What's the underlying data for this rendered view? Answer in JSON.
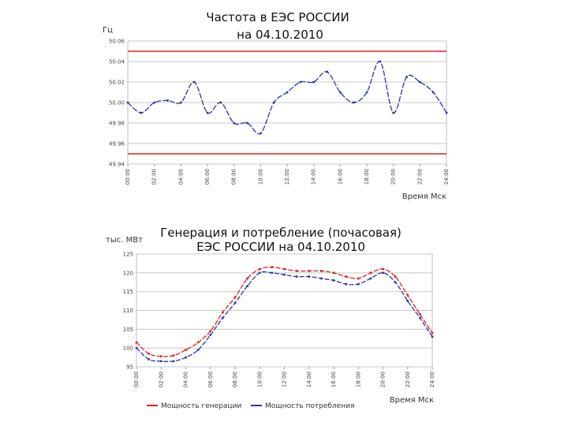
{
  "chart_data": [
    {
      "type": "line",
      "title_line1": "Частота в ЕЭС РОССИИ",
      "title_line2": "на 04.10.2010",
      "ylabel": "Гц",
      "xlabel": "Время Мск",
      "ylim": [
        49.94,
        50.06
      ],
      "y_ticks": [
        "50.06",
        "50.04",
        "50.02",
        "50.00",
        "49.98",
        "49.96",
        "49.94"
      ],
      "x_ticks": [
        "00:00",
        "02:00",
        "04:00",
        "06:00",
        "08:00",
        "10:00",
        "12:00",
        "14:00",
        "16:00",
        "18:00",
        "20:00",
        "22:00",
        "24:00"
      ],
      "limit_lines": [
        50.05,
        49.95
      ],
      "grid": true,
      "colors": {
        "series": "#2a35a8",
        "limits": "#e02020"
      },
      "series": [
        {
          "x": [
            0,
            1,
            2,
            3,
            4,
            5,
            6,
            7,
            8,
            9,
            10,
            11,
            12,
            13,
            14,
            15,
            16,
            17,
            18,
            19,
            20,
            21,
            22,
            23,
            24
          ],
          "values": [
            50.0,
            49.99,
            50.0,
            50.002,
            50.0,
            50.02,
            49.99,
            50.0,
            49.98,
            49.98,
            49.97,
            50.0,
            50.01,
            50.02,
            50.02,
            50.03,
            50.01,
            50.0,
            50.01,
            50.04,
            49.99,
            50.025,
            50.02,
            50.01,
            49.99
          ]
        }
      ]
    },
    {
      "type": "line",
      "title_line1": "Генерация и потребление (почасовая)",
      "title_line2": "ЕЭС РОССИИ на 04.10.2010",
      "ylabel": "тыс. МВт",
      "xlabel": "Время Мск",
      "ylim": [
        95,
        125
      ],
      "y_ticks": [
        "125",
        "120",
        "115",
        "110",
        "105",
        "100",
        "95"
      ],
      "x_ticks": [
        "00:00",
        "02:00",
        "04:00",
        "06:00",
        "08:00",
        "10:00",
        "12:00",
        "14:00",
        "16:00",
        "18:00",
        "20:00",
        "22:00",
        "24:00"
      ],
      "grid": true,
      "legend_position": "bottom",
      "series": [
        {
          "name": "Мощность генерации",
          "color": "#e02020",
          "x": [
            0,
            1,
            2,
            3,
            4,
            5,
            6,
            7,
            8,
            9,
            10,
            11,
            12,
            13,
            14,
            15,
            16,
            17,
            18,
            19,
            20,
            21,
            22,
            23,
            24
          ],
          "values": [
            101.5,
            98.5,
            97.8,
            98.0,
            99.5,
            101.5,
            104.5,
            109.5,
            113.5,
            118.5,
            121.0,
            121.5,
            121.0,
            120.5,
            120.5,
            120.5,
            120.0,
            119.0,
            118.5,
            120.0,
            121.0,
            119.0,
            114.0,
            109.0,
            104.0
          ]
        },
        {
          "name": "Мощность потребления",
          "color": "#2a35a8",
          "x": [
            0,
            1,
            2,
            3,
            4,
            5,
            6,
            7,
            8,
            9,
            10,
            11,
            12,
            13,
            14,
            15,
            16,
            17,
            18,
            19,
            20,
            21,
            22,
            23,
            24
          ],
          "values": [
            100.0,
            97.0,
            96.5,
            96.5,
            97.5,
            99.5,
            103.5,
            108.0,
            112.0,
            116.5,
            120.0,
            120.0,
            119.5,
            119.0,
            119.0,
            118.5,
            118.0,
            117.0,
            117.0,
            118.5,
            120.0,
            117.5,
            112.5,
            108.0,
            103.0
          ]
        }
      ]
    }
  ]
}
